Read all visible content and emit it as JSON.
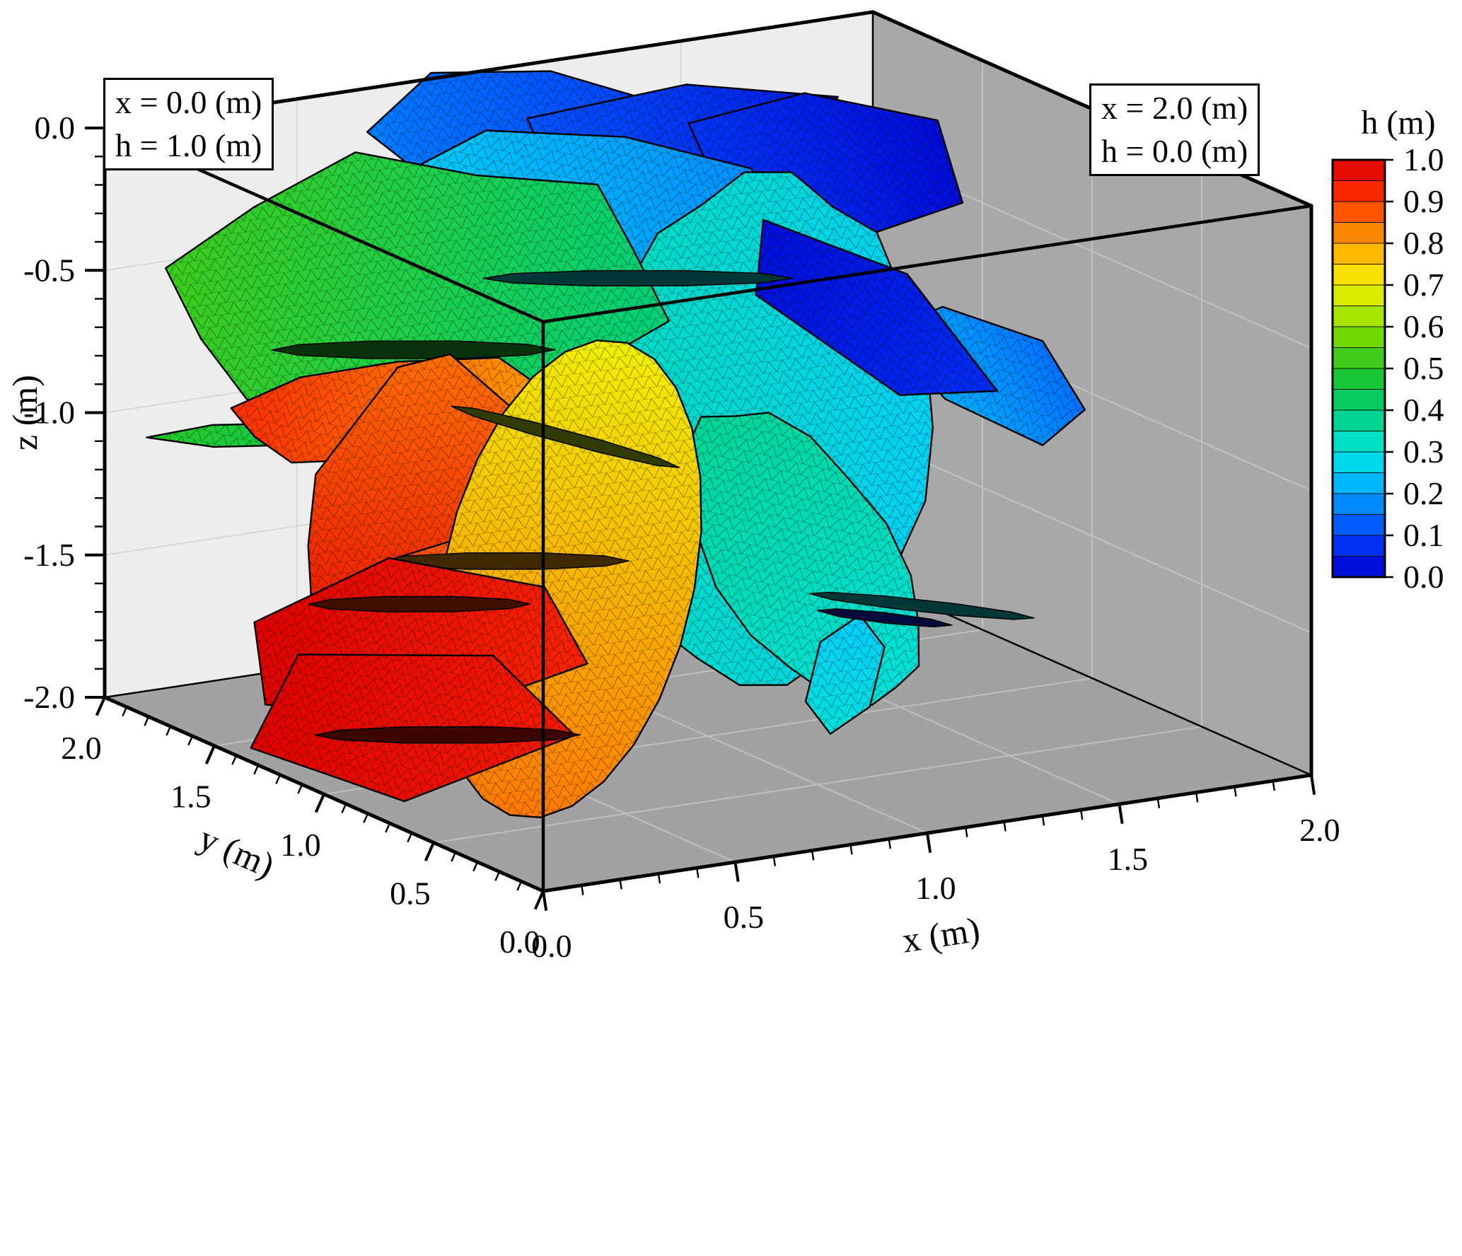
{
  "chart_data": {
    "type": "heatmap",
    "subtype": "3d-discrete-fracture-network-head-field",
    "title": "",
    "annotations": [
      {
        "line1": "x = 0.0 (m)",
        "line2": "h = 1.0 (m)"
      },
      {
        "line1": "x = 2.0 (m)",
        "line2": "h = 0.0 (m)"
      }
    ],
    "axes": {
      "x": {
        "label": "x (m)",
        "range": [
          0,
          2
        ],
        "ticks": [
          0,
          0.5,
          1,
          1.5,
          2
        ],
        "tick_labels": [
          "0.0",
          "0.5",
          "1.0",
          "1.5",
          "2.0"
        ],
        "minor_step": 0.1
      },
      "y": {
        "label": "y (m)",
        "range": [
          0,
          2
        ],
        "ticks": [
          0,
          0.5,
          1,
          1.5,
          2
        ],
        "tick_labels": [
          "0.0",
          "0.5",
          "1.0",
          "1.5",
          "2.0"
        ],
        "minor_step": 0.1
      },
      "z": {
        "label": "z (m)",
        "range": [
          -2,
          0
        ],
        "ticks": [
          0,
          -0.5,
          -1,
          -1.5,
          -2
        ],
        "tick_labels": [
          "0.0",
          "-0.5",
          "-1.0",
          "-1.5",
          "-2.0"
        ],
        "minor_step": 0.1
      }
    },
    "colorbar": {
      "title": "h (m)",
      "min": 0.0,
      "max": 1.0,
      "bands": 20,
      "tick_labels": [
        "1.0",
        "0.9",
        "0.8",
        "0.7",
        "0.6",
        "0.5",
        "0.4",
        "0.3",
        "0.2",
        "0.1",
        "0.0"
      ]
    },
    "colormap": [
      [
        0.0,
        [
          0,
          0,
          205
        ]
      ],
      [
        0.05,
        [
          0,
          30,
          235
        ]
      ],
      [
        0.1,
        [
          0,
          70,
          255
        ]
      ],
      [
        0.15,
        [
          0,
          115,
          255
        ]
      ],
      [
        0.2,
        [
          0,
          160,
          255
        ]
      ],
      [
        0.25,
        [
          0,
          205,
          250
        ]
      ],
      [
        0.3,
        [
          0,
          225,
          220
        ]
      ],
      [
        0.35,
        [
          0,
          218,
          170
        ]
      ],
      [
        0.4,
        [
          0,
          208,
          120
        ]
      ],
      [
        0.45,
        [
          10,
          200,
          70
        ]
      ],
      [
        0.5,
        [
          40,
          200,
          40
        ]
      ],
      [
        0.55,
        [
          90,
          210,
          10
        ]
      ],
      [
        0.6,
        [
          140,
          225,
          0
        ]
      ],
      [
        0.65,
        [
          195,
          235,
          0
        ]
      ],
      [
        0.7,
        [
          240,
          240,
          0
        ]
      ],
      [
        0.75,
        [
          255,
          210,
          0
        ]
      ],
      [
        0.8,
        [
          255,
          160,
          0
        ]
      ],
      [
        0.85,
        [
          255,
          110,
          0
        ]
      ],
      [
        0.9,
        [
          255,
          60,
          0
        ]
      ],
      [
        0.95,
        [
          240,
          20,
          0
        ]
      ],
      [
        1.0,
        [
          220,
          0,
          0
        ]
      ]
    ],
    "projection": {
      "origin": [
        768,
        455
      ],
      "ex": [
        543,
        -82
      ],
      "ey": [
        -310,
        -137
      ],
      "ez": [
        0,
        -402.5
      ]
    },
    "box": {
      "x": [
        0,
        2
      ],
      "y": [
        0,
        2
      ],
      "z": [
        -2,
        0
      ]
    },
    "walls": {
      "back": "#ededed",
      "right": "#a8a8a8",
      "floor": "#a2a2a2",
      "grid_back": "#d6d6d6",
      "grid_right": "#c2c2c2",
      "grid_floor": "#bfbfbf"
    },
    "fractures": [
      {
        "id": "blue-top-left",
        "c": [
          1.0,
          1.85,
          -0.18
        ],
        "u": [
          0.98,
          0.2,
          0
        ],
        "v": [
          -0.15,
          0.74,
          0.66
        ],
        "a": 0.42,
        "b": 0.3,
        "h": [
          0.16,
          0.09
        ],
        "grad": "u",
        "n": 7,
        "mult": [
          1,
          0.82,
          0.95,
          1,
          0.85,
          0.95,
          0.9
        ]
      },
      {
        "id": "blue-top-mid",
        "c": [
          1.35,
          1.75,
          -0.22
        ],
        "u": [
          0.97,
          0.24,
          0
        ],
        "v": [
          -0.23,
          0.93,
          0.28
        ],
        "a": 0.5,
        "b": 0.28,
        "h": [
          0.12,
          0.04
        ],
        "grad": "u",
        "n": 6,
        "mult": [
          1,
          0.9,
          1,
          0.8,
          0.95,
          0.85
        ]
      },
      {
        "id": "blue-top-right",
        "c": [
          1.62,
          1.55,
          -0.3
        ],
        "u": [
          0.9,
          0.44,
          0
        ],
        "v": [
          -0.35,
          0.72,
          0.6
        ],
        "a": 0.45,
        "b": 0.32,
        "h": [
          0.08,
          0.02
        ],
        "grad": "u",
        "n": 6,
        "mult": [
          1,
          0.85,
          1,
          0.9,
          0.95,
          1
        ]
      },
      {
        "id": "cyan-upper",
        "c": [
          0.95,
          1.5,
          -0.35
        ],
        "u": [
          0.94,
          0.34,
          0
        ],
        "v": [
          -0.3,
          0.83,
          0.47
        ],
        "a": 0.6,
        "b": 0.42,
        "h": [
          0.26,
          0.18
        ],
        "grad": "u",
        "n": 9,
        "mult": [
          1,
          0.9,
          1,
          0.95,
          0.85,
          1,
          0.9,
          0.95,
          1
        ]
      },
      {
        "id": "cyan-large",
        "c": [
          1.15,
          1.0,
          -0.95
        ],
        "u": [
          0.86,
          -0.5,
          0
        ],
        "v": [
          0.15,
          0.25,
          0.955
        ],
        "a": 0.38,
        "b": 0.85,
        "h": [
          0.33,
          0.26
        ],
        "grad": "u",
        "n": 22,
        "mult": [
          1,
          1,
          0.96,
          1,
          0.94,
          1,
          1,
          0.95,
          1,
          1,
          0.97,
          1,
          1,
          0.95,
          1,
          0.97,
          1,
          1,
          0.96,
          1,
          0.95,
          1
        ]
      },
      {
        "id": "teal-right",
        "c": [
          1.62,
          0.8,
          -0.78
        ],
        "u": [
          0.8,
          0.6,
          0
        ],
        "v": [
          -0.45,
          0.6,
          0.66
        ],
        "a": 0.3,
        "b": 0.3,
        "h": [
          0.22,
          0.15
        ],
        "grad": "u",
        "n": 6,
        "mult": [
          1,
          0.9,
          1,
          0.85,
          1,
          0.9
        ]
      },
      {
        "id": "blue-pentagon",
        "c": [
          1.55,
          1.25,
          -0.72
        ],
        "u": [
          0.7,
          0.714,
          0
        ],
        "v": [
          -0.5,
          0.49,
          0.71
        ],
        "a": 0.38,
        "b": 0.42,
        "h": [
          0.07,
          0.02
        ],
        "grad": "v",
        "n": 5,
        "mult": [
          1,
          0.95,
          1,
          0.9,
          1
        ]
      },
      {
        "id": "teal-mid",
        "c": [
          1.1,
          0.75,
          -1.3
        ],
        "u": [
          0.9,
          0.436,
          0
        ],
        "v": [
          -0.2,
          0.41,
          0.89
        ],
        "a": 0.34,
        "b": 0.52,
        "h": [
          0.3,
          0.37
        ],
        "grad": "v",
        "n": 18,
        "mult": [
          1,
          0.95,
          1,
          1,
          0.93,
          1,
          0.97,
          1,
          0.94,
          1,
          1,
          0.96,
          1,
          1,
          0.95,
          1,
          0.97,
          1
        ]
      },
      {
        "id": "green-large",
        "c": [
          0.5,
          1.45,
          -0.5
        ],
        "u": [
          0.6,
          -0.8,
          0
        ],
        "v": [
          0.6,
          0.45,
          0.66
        ],
        "a": 0.62,
        "b": 0.56,
        "h": [
          0.52,
          0.4
        ],
        "grad": "u",
        "n": 12,
        "mult": [
          1,
          0.85,
          0.95,
          0.8,
          1,
          0.9,
          1,
          0.85,
          0.9,
          1,
          0.95,
          0.85
        ]
      },
      {
        "id": "green-sliver",
        "c": [
          0.18,
          1.52,
          -0.95
        ],
        "u": [
          0.9,
          -0.436,
          0
        ],
        "v": [
          0.2,
          0.42,
          0.45
        ],
        "a": 0.3,
        "b": 0.07,
        "h": [
          0.5,
          0.43
        ],
        "grad": "u",
        "n": 6
      },
      {
        "id": "sliver-top",
        "c": [
          0.45,
          1.38,
          -0.66
        ],
        "u": [
          0.86,
          -0.51,
          0
        ],
        "v": [
          0.3,
          0.6,
          0.74
        ],
        "a": 0.32,
        "b": 0.032,
        "h": [
          0.5
        ],
        "dark": true,
        "n": 10
      },
      {
        "id": "sliver-upper-mid",
        "c": [
          1.0,
          1.32,
          -0.5
        ],
        "u": [
          0.86,
          -0.51,
          0
        ],
        "v": [
          0.3,
          0.6,
          0.74
        ],
        "a": 0.35,
        "b": 0.028,
        "h": [
          0.3
        ],
        "dark": true,
        "n": 10
      },
      {
        "id": "cyan-small-bottom",
        "c": [
          1.1,
          0.55,
          -1.65
        ],
        "u": [
          0.25,
          0.1,
          0.96
        ],
        "v": [
          0.9,
          -0.3,
          -0.2
        ],
        "a": 0.2,
        "b": 0.09,
        "h": [
          0.3,
          0.25
        ],
        "grad": "u",
        "n": 6
      },
      {
        "id": "sliver-right",
        "c": [
          1.3,
          0.55,
          -1.45
        ],
        "u": [
          0.86,
          -0.2,
          -0.25
        ],
        "v": [
          0.3,
          0.8,
          0.3
        ],
        "a": 0.3,
        "b": 0.035,
        "h": [
          0.3
        ],
        "dark": true,
        "n": 10
      },
      {
        "id": "sliver-blue-right",
        "c": [
          1.3,
          0.72,
          -1.55
        ],
        "u": [
          0.86,
          -0.2,
          -0.25
        ],
        "v": [
          0.3,
          0.8,
          0.3
        ],
        "a": 0.18,
        "b": 0.03,
        "h": [
          0.06
        ],
        "dark": true,
        "n": 8
      },
      {
        "id": "orange-curved",
        "c": [
          0.3,
          1.2,
          -0.78
        ],
        "u": [
          0.55,
          -0.82,
          0.15
        ],
        "v": [
          0.74,
          0.45,
          0.35
        ],
        "a": 0.42,
        "b": 0.3,
        "h": [
          0.92,
          0.8
        ],
        "grad": "u",
        "n": 10,
        "mult": [
          1,
          0.85,
          1,
          0.9,
          0.95,
          1,
          0.85,
          1,
          0.9,
          1
        ]
      },
      {
        "id": "red-tall",
        "c": [
          0.25,
          1.0,
          -1.08
        ],
        "u": [
          0.2,
          0.1,
          0.97
        ],
        "v": [
          0.9,
          -0.42,
          -0.14
        ],
        "a": 0.55,
        "b": 0.26,
        "h": [
          0.97,
          0.85
        ],
        "grad": "u",
        "n": 14,
        "mult": [
          1,
          0.9,
          1,
          0.95,
          1,
          0.9,
          1,
          1,
          0.92,
          1,
          0.95,
          1,
          0.9,
          1
        ]
      },
      {
        "id": "orange-mid",
        "c": [
          0.3,
          0.95,
          -1.35
        ],
        "u": [
          0.6,
          -0.8,
          0
        ],
        "v": [
          0.74,
          0.51,
          0.43
        ],
        "a": 0.3,
        "b": 0.28,
        "h": [
          0.9,
          0.84
        ],
        "grad": "u",
        "n": 7,
        "mult": [
          1,
          0.9,
          1,
          0.85,
          1,
          0.95,
          0.9
        ]
      },
      {
        "id": "yellow-ellipse",
        "c": [
          0.42,
          0.62,
          -1.2
        ],
        "u": [
          0.55,
          -0.83,
          0.06
        ],
        "v": [
          0.2,
          0.1,
          0.975
        ],
        "a": 0.32,
        "b": 0.8,
        "h": [
          0.84,
          0.7
        ],
        "grad": "v",
        "n": 26
      },
      {
        "id": "sliver-khaki",
        "c": [
          0.6,
          0.95,
          -0.85
        ],
        "u": [
          0.7,
          -0.35,
          -0.35
        ],
        "v": [
          0.5,
          0.8,
          0.2
        ],
        "a": 0.33,
        "b": 0.04,
        "h": [
          0.65
        ],
        "dark": true,
        "n": 10
      },
      {
        "id": "sliver-mid1",
        "c": [
          0.5,
          1.05,
          -1.3
        ],
        "u": [
          0.86,
          -0.51,
          0
        ],
        "v": [
          0.3,
          0.6,
          0.74
        ],
        "a": 0.28,
        "b": 0.03,
        "h": [
          0.8
        ],
        "dark": true,
        "n": 10
      },
      {
        "id": "red-quad-upper",
        "c": [
          0.28,
          1.08,
          -1.55
        ],
        "u": [
          0.55,
          -0.835,
          0
        ],
        "v": [
          0.75,
          0.5,
          0.42
        ],
        "a": 0.44,
        "b": 0.4,
        "h": [
          1.0,
          0.93
        ],
        "grad": "u",
        "n": 6,
        "mult": [
          1,
          0.88,
          1,
          0.92,
          1,
          0.9
        ]
      },
      {
        "id": "sliver-mid2",
        "c": [
          0.42,
          1.3,
          -1.52
        ],
        "u": [
          0.86,
          -0.51,
          0
        ],
        "v": [
          0.3,
          0.6,
          0.74
        ],
        "a": 0.25,
        "b": 0.028,
        "h": [
          0.9
        ],
        "dark": true,
        "n": 10
      },
      {
        "id": "red-quad-lower",
        "c": [
          0.18,
          0.95,
          -1.75
        ],
        "u": [
          0.6,
          -0.8,
          0
        ],
        "v": [
          0.7,
          0.53,
          0.48
        ],
        "a": 0.42,
        "b": 0.36,
        "h": [
          1.0,
          0.94
        ],
        "grad": "u",
        "n": 5,
        "mult": [
          1,
          0.85,
          1,
          0.9,
          1
        ]
      },
      {
        "id": "sliver-low",
        "c": [
          0.35,
          1.05,
          -1.88
        ],
        "u": [
          0.86,
          -0.51,
          0
        ],
        "v": [
          0.3,
          0.6,
          0.74
        ],
        "a": 0.3,
        "b": 0.03,
        "h": [
          0.95
        ],
        "dark": true,
        "n": 10
      }
    ]
  }
}
